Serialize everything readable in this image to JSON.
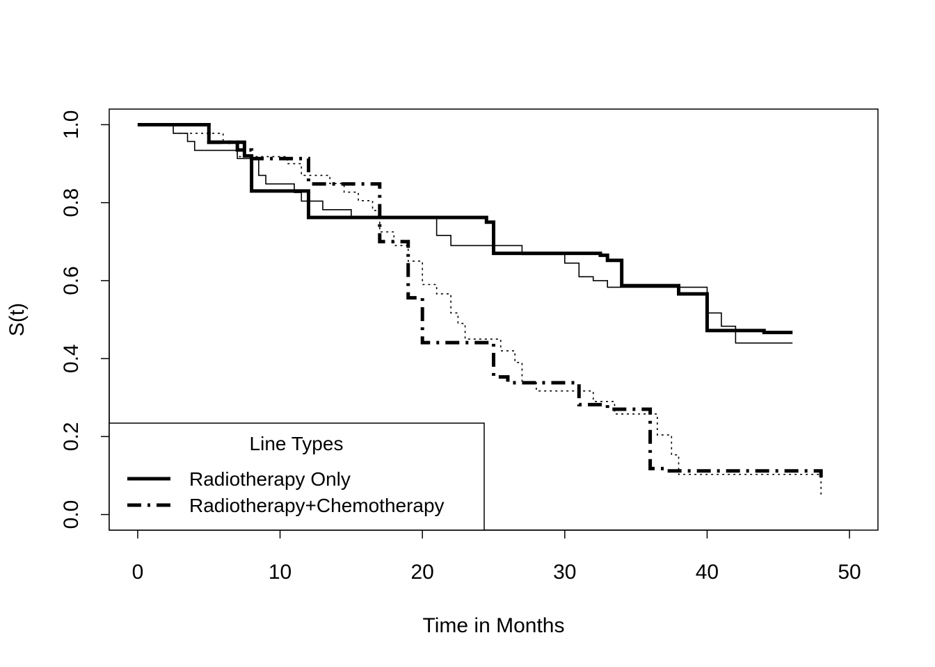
{
  "chart_data": {
    "type": "line",
    "step": true,
    "xlabel": "Time in Months",
    "ylabel": "S(t)",
    "xlim": [
      -2,
      52
    ],
    "ylim": [
      -0.04,
      1.04
    ],
    "xticks": [
      0,
      10,
      20,
      30,
      40,
      50
    ],
    "yticks": [
      0.0,
      0.2,
      0.4,
      0.6,
      0.8,
      1.0
    ],
    "xtick_labels": [
      "0",
      "10",
      "20",
      "30",
      "40",
      "50"
    ],
    "ytick_labels": [
      "0.0",
      "0.2",
      "0.4",
      "0.6",
      "0.8",
      "1.0"
    ],
    "grid": false,
    "legend": {
      "title": "Line Types",
      "placement": "bottom-left",
      "entries": [
        "Radiotherapy Only",
        "Radiotherapy+Chemotherapy"
      ]
    },
    "series": [
      {
        "name": "Radiotherapy Only",
        "style": "solid-thick",
        "x": [
          0,
          5,
          7.5,
          8,
          12,
          24.5,
          25,
          32.5,
          33,
          34,
          38,
          40,
          44,
          46
        ],
        "y": [
          1.0,
          0.955,
          0.92,
          0.83,
          0.762,
          0.75,
          0.67,
          0.665,
          0.652,
          0.587,
          0.566,
          0.472,
          0.467,
          0.467
        ]
      },
      {
        "style": "solid-thin",
        "x": [
          0,
          2.5,
          3.5,
          4,
          6.5,
          7,
          8,
          8.5,
          9,
          11,
          11.5,
          12.5,
          13,
          15,
          21,
          22,
          27,
          30,
          31,
          32,
          33,
          34,
          38,
          40,
          41,
          42,
          46
        ],
        "y": [
          1.0,
          0.978,
          0.957,
          0.934,
          0.934,
          0.913,
          0.913,
          0.87,
          0.848,
          0.826,
          0.804,
          0.804,
          0.782,
          0.76,
          0.716,
          0.69,
          0.667,
          0.645,
          0.61,
          0.6,
          0.583,
          0.583,
          0.583,
          0.517,
          0.483,
          0.44,
          0.44
        ]
      },
      {
        "name": "Radiotherapy+Chemotherapy",
        "style": "dashdot-thick",
        "x": [
          0,
          5,
          7,
          8,
          12,
          17,
          19,
          20,
          25,
          26,
          31,
          33,
          36,
          37,
          48
        ],
        "y": [
          1.0,
          0.955,
          0.935,
          0.913,
          0.848,
          0.7,
          0.556,
          0.441,
          0.353,
          0.338,
          0.282,
          0.27,
          0.118,
          0.112,
          0.08
        ]
      },
      {
        "style": "dotted-thin",
        "x": [
          2.5,
          6,
          7,
          9.5,
          10.5,
          11.5,
          13.5,
          14.5,
          15.5,
          16.5,
          17,
          18,
          19,
          20,
          21,
          22,
          22.5,
          23,
          25.5,
          26.5,
          27,
          28,
          31,
          32,
          33.5,
          36,
          36.5,
          37.5,
          38,
          47,
          48
        ],
        "y": [
          0.978,
          0.955,
          0.918,
          0.918,
          0.9,
          0.87,
          0.849,
          0.827,
          0.805,
          0.78,
          0.725,
          0.69,
          0.65,
          0.59,
          0.566,
          0.517,
          0.49,
          0.45,
          0.42,
          0.39,
          0.34,
          0.317,
          0.317,
          0.29,
          0.258,
          0.258,
          0.204,
          0.153,
          0.103,
          0.103,
          0.05
        ]
      }
    ]
  }
}
